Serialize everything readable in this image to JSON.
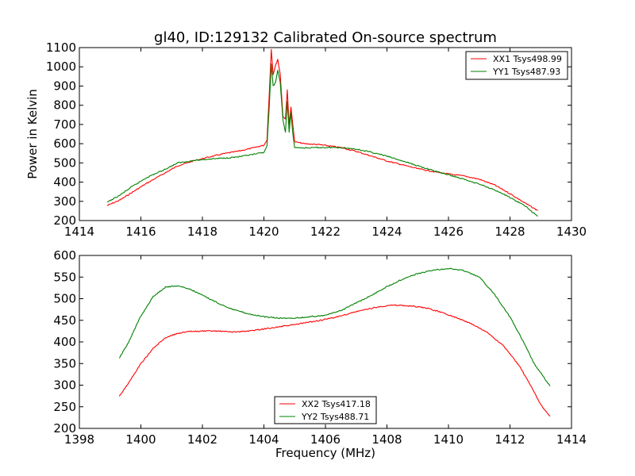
{
  "chart_data": [
    {
      "type": "line",
      "title": "gl40, ID:129132 Calibrated On-source spectrum",
      "xlabel": "",
      "ylabel": "Power in Kelvin",
      "xlim": [
        1414,
        1430
      ],
      "ylim": [
        200,
        1100
      ],
      "xticks": [
        1414,
        1416,
        1418,
        1420,
        1422,
        1424,
        1426,
        1428,
        1430
      ],
      "yticks": [
        200,
        300,
        400,
        500,
        600,
        700,
        800,
        900,
        1000,
        1100
      ],
      "legend_position": "top-right",
      "series": [
        {
          "name": "XX1 Tsys498.99",
          "color": "#ff0000",
          "points": [
            [
              1414.9,
              278
            ],
            [
              1415.3,
              305
            ],
            [
              1415.7,
              345
            ],
            [
              1416.2,
              395
            ],
            [
              1416.7,
              440
            ],
            [
              1417.2,
              485
            ],
            [
              1417.7,
              510
            ],
            [
              1418.2,
              530
            ],
            [
              1418.7,
              548
            ],
            [
              1419.2,
              562
            ],
            [
              1419.7,
              580
            ],
            [
              1420.0,
              592
            ],
            [
              1420.1,
              620
            ],
            [
              1420.17,
              850
            ],
            [
              1420.24,
              1090
            ],
            [
              1420.3,
              960
            ],
            [
              1420.38,
              1010
            ],
            [
              1420.45,
              1040
            ],
            [
              1420.53,
              960
            ],
            [
              1420.62,
              740
            ],
            [
              1420.7,
              730
            ],
            [
              1420.76,
              880
            ],
            [
              1420.82,
              700
            ],
            [
              1420.88,
              790
            ],
            [
              1420.94,
              700
            ],
            [
              1421.0,
              610
            ],
            [
              1421.3,
              600
            ],
            [
              1421.8,
              595
            ],
            [
              1422.5,
              580
            ],
            [
              1423.0,
              560
            ],
            [
              1423.5,
              535
            ],
            [
              1424.0,
              510
            ],
            [
              1424.5,
              490
            ],
            [
              1425.0,
              470
            ],
            [
              1425.5,
              455
            ],
            [
              1426.0,
              442
            ],
            [
              1426.5,
              432
            ],
            [
              1427.0,
              415
            ],
            [
              1427.5,
              385
            ],
            [
              1428.0,
              340
            ],
            [
              1428.5,
              290
            ],
            [
              1428.9,
              252
            ]
          ]
        },
        {
          "name": "YY1 Tsys487.93",
          "color": "#008000",
          "points": [
            [
              1414.9,
              295
            ],
            [
              1415.3,
              330
            ],
            [
              1415.7,
              375
            ],
            [
              1416.2,
              425
            ],
            [
              1416.7,
              460
            ],
            [
              1417.2,
              500
            ],
            [
              1417.7,
              512
            ],
            [
              1418.2,
              520
            ],
            [
              1418.7,
              525
            ],
            [
              1419.2,
              532
            ],
            [
              1419.7,
              545
            ],
            [
              1420.0,
              555
            ],
            [
              1420.1,
              590
            ],
            [
              1420.17,
              780
            ],
            [
              1420.24,
              1015
            ],
            [
              1420.3,
              900
            ],
            [
              1420.38,
              920
            ],
            [
              1420.45,
              980
            ],
            [
              1420.53,
              920
            ],
            [
              1420.62,
              720
            ],
            [
              1420.7,
              660
            ],
            [
              1420.76,
              820
            ],
            [
              1420.82,
              660
            ],
            [
              1420.88,
              760
            ],
            [
              1420.94,
              650
            ],
            [
              1421.0,
              580
            ],
            [
              1421.3,
              578
            ],
            [
              1421.8,
              580
            ],
            [
              1422.5,
              580
            ],
            [
              1423.0,
              572
            ],
            [
              1423.5,
              555
            ],
            [
              1424.0,
              535
            ],
            [
              1424.5,
              510
            ],
            [
              1425.0,
              485
            ],
            [
              1425.5,
              460
            ],
            [
              1426.0,
              438
            ],
            [
              1426.5,
              415
            ],
            [
              1427.0,
              390
            ],
            [
              1427.5,
              360
            ],
            [
              1428.0,
              320
            ],
            [
              1428.5,
              275
            ],
            [
              1428.9,
              222
            ]
          ]
        }
      ]
    },
    {
      "type": "line",
      "title": "",
      "xlabel": "Frequency (MHz)",
      "ylabel": "",
      "xlim": [
        1398,
        1414
      ],
      "ylim": [
        200,
        600
      ],
      "xticks": [
        1398,
        1400,
        1402,
        1404,
        1406,
        1408,
        1410,
        1412,
        1414
      ],
      "yticks": [
        200,
        250,
        300,
        350,
        400,
        450,
        500,
        550,
        600
      ],
      "legend_position": "bottom-center",
      "series": [
        {
          "name": "XX2 Tsys417.18",
          "color": "#ff0000",
          "points": [
            [
              1399.3,
              275
            ],
            [
              1399.6,
              305
            ],
            [
              1400.0,
              350
            ],
            [
              1400.4,
              385
            ],
            [
              1400.8,
              410
            ],
            [
              1401.2,
              420
            ],
            [
              1401.6,
              424
            ],
            [
              1402.0,
              425
            ],
            [
              1402.5,
              425
            ],
            [
              1403.0,
              423
            ],
            [
              1403.5,
              425
            ],
            [
              1404.0,
              430
            ],
            [
              1404.5,
              435
            ],
            [
              1405.0,
              440
            ],
            [
              1405.5,
              446
            ],
            [
              1406.0,
              452
            ],
            [
              1406.5,
              460
            ],
            [
              1407.0,
              470
            ],
            [
              1407.5,
              478
            ],
            [
              1408.0,
              484
            ],
            [
              1408.3,
              485
            ],
            [
              1408.8,
              483
            ],
            [
              1409.3,
              478
            ],
            [
              1409.8,
              468
            ],
            [
              1410.3,
              455
            ],
            [
              1410.8,
              440
            ],
            [
              1411.3,
              420
            ],
            [
              1411.8,
              390
            ],
            [
              1412.3,
              345
            ],
            [
              1412.7,
              295
            ],
            [
              1413.0,
              255
            ],
            [
              1413.3,
              228
            ]
          ]
        },
        {
          "name": "YY2 Tsys488.71",
          "color": "#008000",
          "points": [
            [
              1399.3,
              362
            ],
            [
              1399.6,
              400
            ],
            [
              1400.0,
              460
            ],
            [
              1400.4,
              505
            ],
            [
              1400.8,
              527
            ],
            [
              1401.2,
              530
            ],
            [
              1401.6,
              522
            ],
            [
              1402.0,
              508
            ],
            [
              1402.5,
              490
            ],
            [
              1403.0,
              475
            ],
            [
              1403.5,
              465
            ],
            [
              1404.0,
              458
            ],
            [
              1404.5,
              455
            ],
            [
              1405.0,
              455
            ],
            [
              1405.5,
              458
            ],
            [
              1406.0,
              462
            ],
            [
              1406.5,
              472
            ],
            [
              1407.0,
              490
            ],
            [
              1407.5,
              508
            ],
            [
              1408.0,
              528
            ],
            [
              1408.5,
              545
            ],
            [
              1409.0,
              558
            ],
            [
              1409.5,
              566
            ],
            [
              1410.0,
              570
            ],
            [
              1410.5,
              565
            ],
            [
              1411.0,
              550
            ],
            [
              1411.5,
              510
            ],
            [
              1412.0,
              458
            ],
            [
              1412.4,
              405
            ],
            [
              1412.8,
              348
            ],
            [
              1413.3,
              298
            ]
          ]
        }
      ]
    }
  ]
}
